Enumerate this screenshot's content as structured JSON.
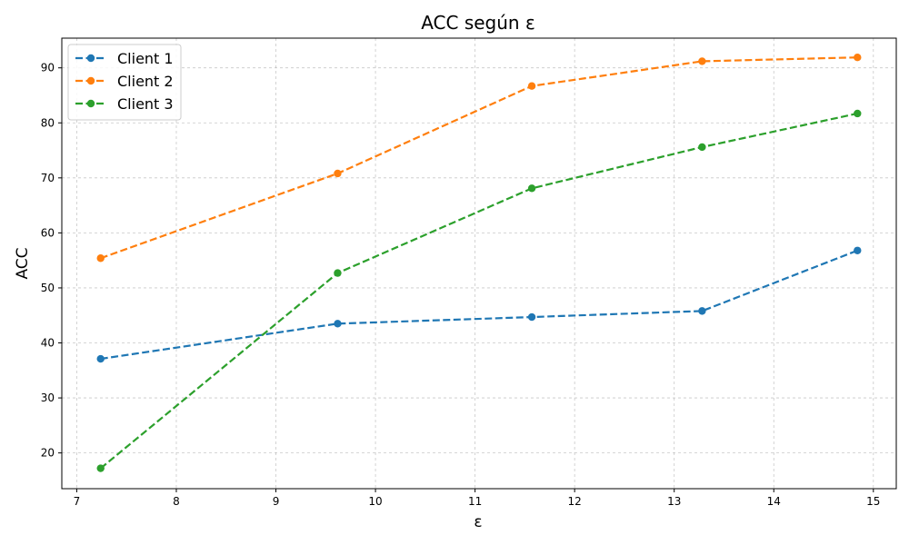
{
  "chart_data": {
    "type": "line",
    "title": "ACC según ε",
    "xlabel": "ε",
    "ylabel": "ACC",
    "xlim": [
      6.85,
      15.23
    ],
    "ylim": [
      13.5,
      95.4
    ],
    "x_ticks": [
      7,
      8,
      9,
      10,
      11,
      12,
      13,
      14,
      15
    ],
    "y_ticks": [
      20,
      30,
      40,
      50,
      60,
      70,
      80,
      90
    ],
    "grid": true,
    "legend_position": "top-left",
    "x": [
      7.24,
      9.62,
      11.57,
      13.28,
      14.84
    ],
    "series": [
      {
        "name": "Client 1",
        "color": "#1f77b4",
        "values": [
          37.1,
          43.5,
          44.7,
          45.8,
          56.8
        ]
      },
      {
        "name": "Client 2",
        "color": "#ff7f0e",
        "values": [
          55.4,
          70.8,
          86.7,
          91.2,
          91.9
        ]
      },
      {
        "name": "Client 3",
        "color": "#2ca02c",
        "values": [
          17.2,
          52.7,
          68.1,
          75.6,
          81.7
        ]
      }
    ]
  }
}
